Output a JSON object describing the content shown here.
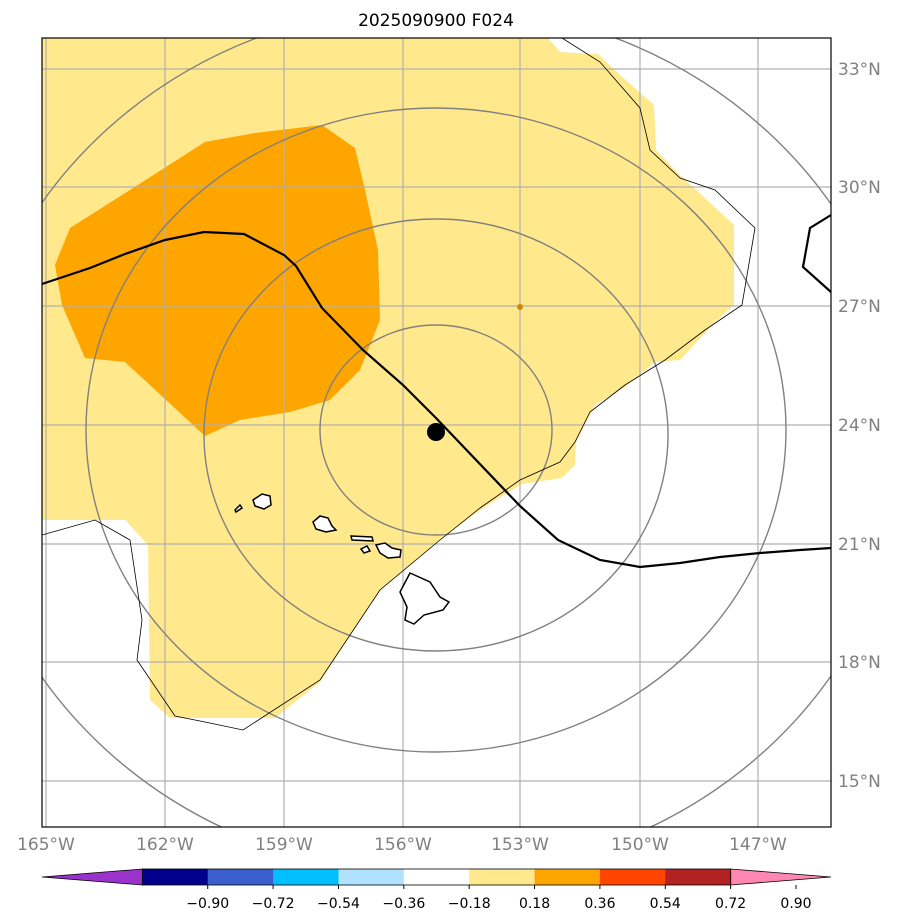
{
  "map": {
    "title": "2025090900 F024",
    "lon_range": [
      -165.2,
      -145.5
    ],
    "lat_range": [
      13.8,
      33.8
    ],
    "graticule": {
      "lon_ticks": [
        -165,
        -162,
        -159,
        -156,
        -153,
        -150,
        -147
      ],
      "lon_labels": [
        "165°W",
        "162°W",
        "159°W",
        "156°W",
        "153°W",
        "150°W",
        "147°W"
      ],
      "lat_ticks": [
        15,
        18,
        21,
        24,
        27,
        30,
        33
      ],
      "lat_labels": [
        "15°N",
        "18°N",
        "21°N",
        "24°N",
        "27°N",
        "30°N",
        "33°N"
      ]
    },
    "center_marker": {
      "lon": -155.1,
      "lat": 23.8
    },
    "colors": {
      "grid": "#b0b0b0",
      "range_ring": "#808080",
      "track": "#000000",
      "marker": "#000000",
      "fill_018_036": "#ffe98c",
      "fill_036_054": "#ffa500"
    }
  },
  "colorbar": {
    "ticks": [
      "−0.90",
      "−0.72",
      "−0.54",
      "−0.36",
      "−0.18",
      "0.18",
      "0.36",
      "0.54",
      "0.72",
      "0.90"
    ],
    "colors": [
      "#9933cc",
      "#00008b",
      "#3a5fcd",
      "#00bfff",
      "#b0e2ff",
      "#ffffff",
      "#ffe98c",
      "#ffa500",
      "#ff4500",
      "#b22222",
      "#ff88b2"
    ],
    "under_color": "#9933cc",
    "over_color": "#ff88b2"
  }
}
